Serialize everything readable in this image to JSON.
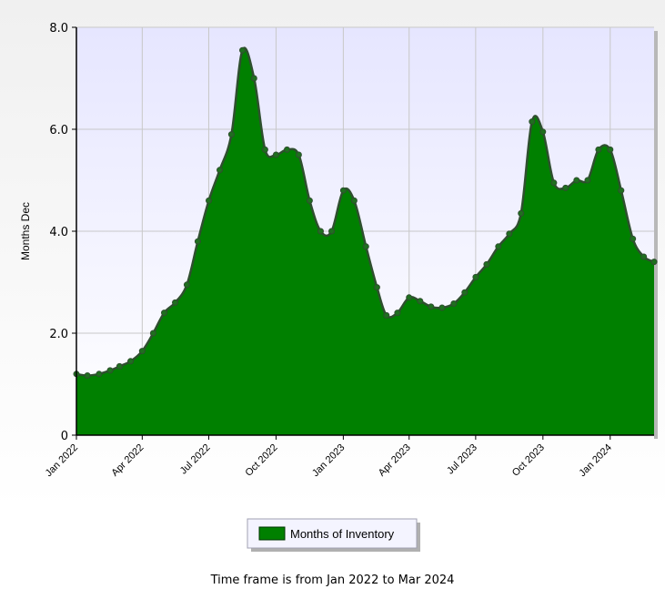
{
  "chart_data": {
    "type": "area",
    "ylabel": "Months Dec",
    "ylim": [
      0,
      8
    ],
    "y_ticks": [
      "0",
      "2.0",
      "4.0",
      "6.0",
      "8.0"
    ],
    "x_ticks": [
      "Jan 2022",
      "Apr 2022",
      "Jul 2022",
      "Oct 2022",
      "Jan 2023",
      "Apr 2023",
      "Jul 2023",
      "Oct 2023",
      "Jan 2024"
    ],
    "grid": true,
    "legend_position": "bottom",
    "colors": {
      "fill": "#008000",
      "line": "#2f4f2f",
      "plot_bg": "#e8e8ff",
      "frame": "#f0f0f0"
    },
    "series": [
      {
        "name": "Months of Inventory",
        "points": [
          [
            "2022-01-01",
            1.2
          ],
          [
            "2022-01-16",
            1.17
          ],
          [
            "2022-02-01",
            1.2
          ],
          [
            "2022-02-16",
            1.27
          ],
          [
            "2022-03-01",
            1.35
          ],
          [
            "2022-03-16",
            1.45
          ],
          [
            "2022-04-01",
            1.65
          ],
          [
            "2022-04-16",
            2.0
          ],
          [
            "2022-05-01",
            2.4
          ],
          [
            "2022-05-16",
            2.6
          ],
          [
            "2022-06-01",
            2.95
          ],
          [
            "2022-06-16",
            3.8
          ],
          [
            "2022-07-01",
            4.6
          ],
          [
            "2022-07-16",
            5.2
          ],
          [
            "2022-08-01",
            5.9
          ],
          [
            "2022-08-16",
            7.55
          ],
          [
            "2022-09-01",
            7.0
          ],
          [
            "2022-09-16",
            5.6
          ],
          [
            "2022-10-01",
            5.5
          ],
          [
            "2022-10-16",
            5.6
          ],
          [
            "2022-11-01",
            5.5
          ],
          [
            "2022-11-16",
            4.6
          ],
          [
            "2022-12-01",
            4.0
          ],
          [
            "2022-12-16",
            4.0
          ],
          [
            "2023-01-01",
            4.8
          ],
          [
            "2023-01-16",
            4.6
          ],
          [
            "2023-02-01",
            3.7
          ],
          [
            "2023-02-16",
            2.9
          ],
          [
            "2023-03-01",
            2.35
          ],
          [
            "2023-03-16",
            2.4
          ],
          [
            "2023-04-01",
            2.7
          ],
          [
            "2023-04-16",
            2.63
          ],
          [
            "2023-05-01",
            2.52
          ],
          [
            "2023-05-16",
            2.5
          ],
          [
            "2023-06-01",
            2.58
          ],
          [
            "2023-06-16",
            2.8
          ],
          [
            "2023-07-01",
            3.1
          ],
          [
            "2023-07-16",
            3.35
          ],
          [
            "2023-08-01",
            3.7
          ],
          [
            "2023-08-16",
            3.95
          ],
          [
            "2023-09-01",
            4.35
          ],
          [
            "2023-09-16",
            6.15
          ],
          [
            "2023-10-01",
            5.95
          ],
          [
            "2023-10-16",
            4.95
          ],
          [
            "2023-11-01",
            4.85
          ],
          [
            "2023-11-16",
            5.0
          ],
          [
            "2023-12-01",
            5.0
          ],
          [
            "2023-12-16",
            5.6
          ],
          [
            "2024-01-01",
            5.6
          ],
          [
            "2024-01-16",
            4.8
          ],
          [
            "2024-02-01",
            3.85
          ],
          [
            "2024-02-16",
            3.5
          ],
          [
            "2024-03-01",
            3.4
          ]
        ]
      }
    ]
  },
  "footer": "Time frame is from Jan 2022 to Mar 2024"
}
